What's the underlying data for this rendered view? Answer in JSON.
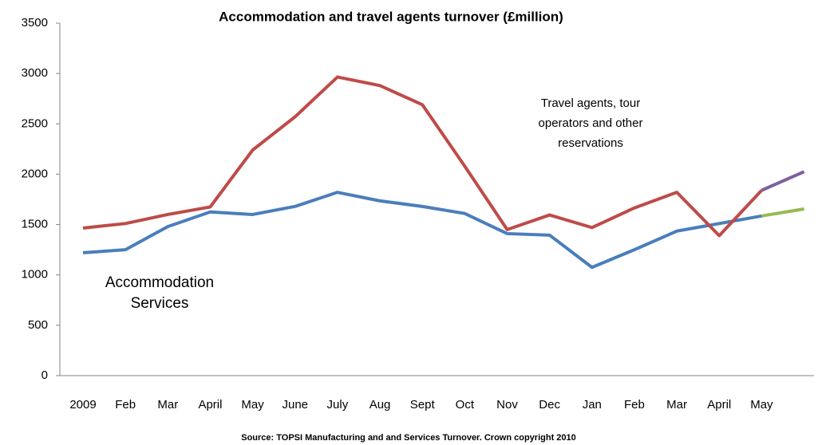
{
  "chart_data": {
    "type": "line",
    "title": "Accommodation and travel agents turnover (£million)",
    "categories": [
      "2009",
      "Feb",
      "Mar",
      "April",
      "May",
      "June",
      "July",
      "Aug",
      "Sept",
      "Oct",
      "Nov",
      "Dec",
      "Jan",
      "Feb",
      "Mar",
      "April",
      "May",
      null
    ],
    "series": [
      {
        "color": "#4a7ebb",
        "values": [
          1220,
          1250,
          1480,
          1625,
          1600,
          1680,
          1820,
          1735,
          1680,
          1610,
          1410,
          1395,
          1075,
          1250,
          1435,
          1510,
          1585,
          null
        ]
      },
      {
        "color": "#98b954",
        "values": [
          null,
          null,
          null,
          null,
          null,
          null,
          null,
          null,
          null,
          null,
          null,
          null,
          null,
          null,
          null,
          null,
          1585,
          1655
        ]
      },
      {
        "color": "#be4b48",
        "values": [
          1465,
          1510,
          1600,
          1675,
          2240,
          2570,
          2965,
          2880,
          2690,
          2080,
          1450,
          1595,
          1470,
          1665,
          1820,
          1390,
          1840,
          null
        ]
      },
      {
        "color": "#7d60a0",
        "values": [
          null,
          null,
          null,
          null,
          null,
          null,
          null,
          null,
          null,
          null,
          null,
          null,
          null,
          null,
          null,
          null,
          1840,
          2025
        ]
      }
    ],
    "annotations": [
      {
        "lines": [
          "Accommodation",
          "Services"
        ]
      },
      {
        "lines": [
          "Travel agents, tour",
          "operators and other",
          "reservations"
        ]
      }
    ],
    "source": "Source: TOPSI Manufacturing and and Services Turnover. Crown copyright 2010",
    "ylim": [
      0,
      3500
    ],
    "yticks": [
      0,
      500,
      1000,
      1500,
      2000,
      2500,
      3000,
      3500
    ],
    "grid": false
  }
}
